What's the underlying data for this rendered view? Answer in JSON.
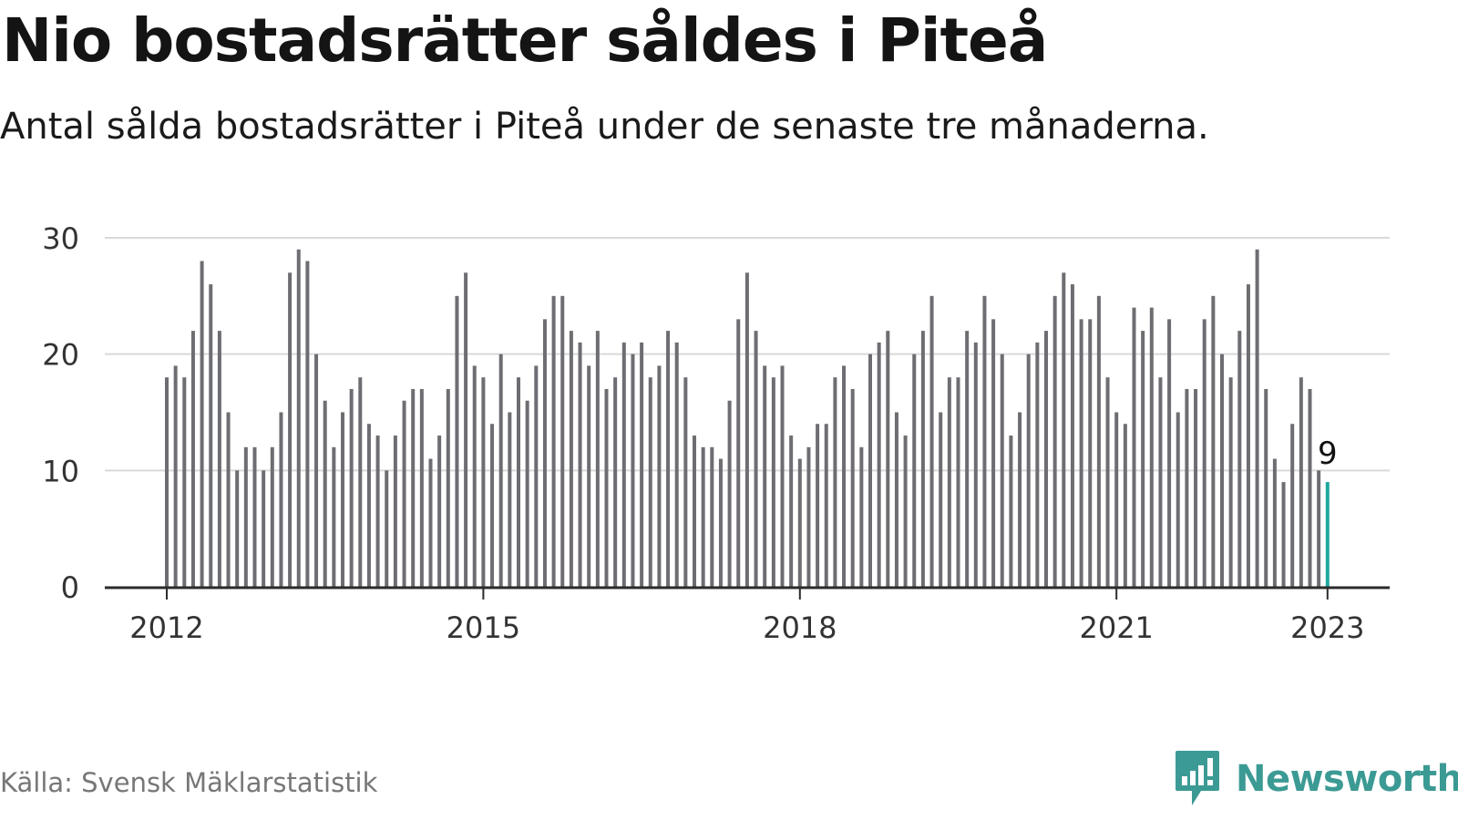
{
  "header": {
    "title": "Nio bostadsrätter såldes i Piteå",
    "subtitle": "Antal sålda bostadsrätter i Piteå under de senaste tre månaderna."
  },
  "footer": {
    "source": "Källa: Svensk Mäklarstatistik",
    "brand": "Newsworthy"
  },
  "colors": {
    "bar": "#6d6d72",
    "highlight": "#1fa89e",
    "grid": "#d9d9d9",
    "axis": "#2b2b2b",
    "brand": "#3c9a94"
  },
  "chart_data": {
    "type": "bar",
    "title": "Nio bostadsrätter såldes i Piteå",
    "subtitle": "Antal sålda bostadsrätter i Piteå under de senaste tre månaderna.",
    "xlabel": "",
    "ylabel": "",
    "ylim": [
      0,
      30
    ],
    "yticks": [
      0,
      10,
      20,
      30
    ],
    "grid": true,
    "start": "2012-01",
    "x_ticks": [
      {
        "label": "2012",
        "index": 0
      },
      {
        "label": "2015",
        "index": 36
      },
      {
        "label": "2018",
        "index": 72
      },
      {
        "label": "2021",
        "index": 108
      },
      {
        "label": "2023",
        "index": 132
      }
    ],
    "highlight_index": 132,
    "highlight_label": "9",
    "values": [
      18,
      19,
      18,
      22,
      28,
      26,
      22,
      15,
      10,
      12,
      12,
      10,
      12,
      15,
      27,
      29,
      28,
      20,
      16,
      12,
      15,
      17,
      18,
      14,
      13,
      10,
      13,
      16,
      17,
      17,
      11,
      13,
      17,
      25,
      27,
      19,
      18,
      14,
      20,
      15,
      18,
      16,
      19,
      23,
      25,
      25,
      22,
      21,
      19,
      22,
      17,
      18,
      21,
      20,
      21,
      18,
      19,
      22,
      21,
      18,
      13,
      12,
      12,
      11,
      16,
      23,
      27,
      22,
      19,
      18,
      19,
      13,
      11,
      12,
      14,
      14,
      18,
      19,
      17,
      12,
      20,
      21,
      22,
      15,
      13,
      20,
      22,
      25,
      15,
      18,
      18,
      22,
      21,
      25,
      23,
      20,
      13,
      15,
      20,
      21,
      22,
      25,
      27,
      26,
      23,
      23,
      25,
      18,
      15,
      14,
      24,
      22,
      24,
      18,
      23,
      15,
      17,
      17,
      23,
      25,
      20,
      18,
      22,
      26,
      29,
      17,
      11,
      9,
      14,
      18,
      17,
      10,
      9
    ]
  }
}
